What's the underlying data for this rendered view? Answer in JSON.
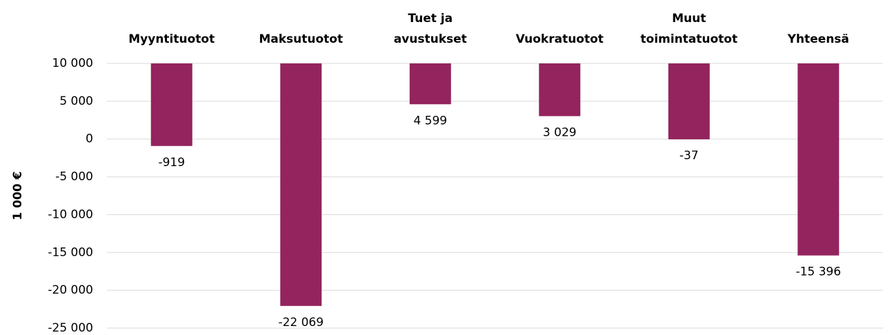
{
  "chart_data": {
    "type": "bar",
    "y_label": "1 000 €",
    "categories": [
      "Myyntituotot",
      "Maksutuotot",
      "Tuet ja avustukset",
      "Vuokratuotot",
      "Muut toimintatuotot",
      "Yhteensä"
    ],
    "values": [
      -919,
      -22069,
      4599,
      3029,
      -37,
      -15396
    ],
    "value_labels": [
      "-919",
      "-22 069",
      "4 599",
      "3 029",
      "-37",
      "-15 396"
    ],
    "color": "#93245e",
    "ylim": [
      -25000,
      10000
    ],
    "yticks": [
      {
        "value": -25000,
        "label": "-25 000"
      },
      {
        "value": -20000,
        "label": "-20 000"
      },
      {
        "value": -15000,
        "label": "-15 000"
      },
      {
        "value": -10000,
        "label": "-10 000"
      },
      {
        "value": -5000,
        "label": "-5 000"
      },
      0,
      {
        "value": 5000,
        "label": "5 000"
      },
      {
        "value": 10000,
        "label": "10 000"
      }
    ],
    "grid": true,
    "x_axis_position": "top"
  }
}
